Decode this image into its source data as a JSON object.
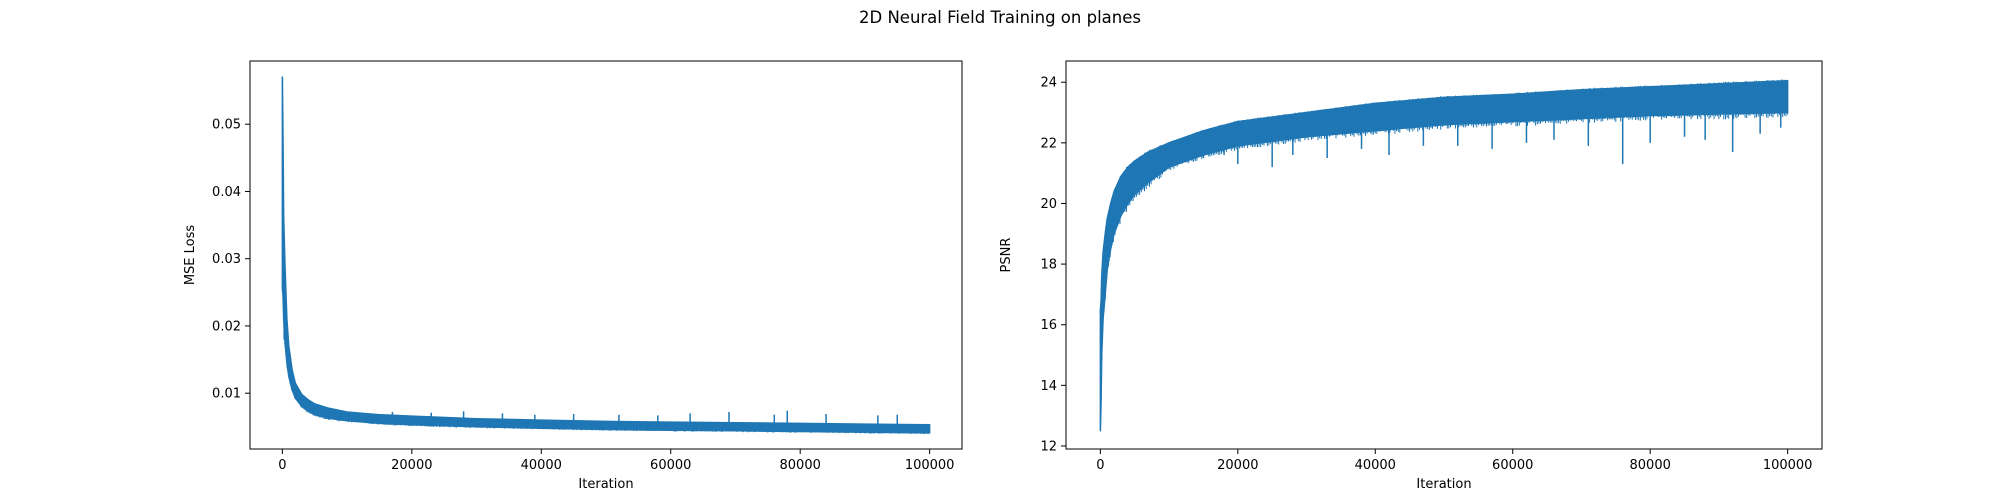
{
  "figure": {
    "title": "2D Neural Field Training on planes"
  },
  "chart_data": [
    {
      "type": "line",
      "xlabel": "Iteration",
      "ylabel": "MSE Loss",
      "xlim": [
        -5000,
        105000
      ],
      "ylim": [
        0.0017,
        0.0594
      ],
      "xticks": [
        0,
        20000,
        40000,
        60000,
        80000,
        100000
      ],
      "yticks": [
        0.01,
        0.02,
        0.03,
        0.04,
        0.05
      ],
      "ytick_format": "2",
      "color": "#1f77b4",
      "grid": false,
      "series": [
        {
          "x": [
            0,
            100,
            200,
            400,
            700,
            1000,
            1500,
            2000,
            3000,
            4000,
            5000,
            7000,
            10000,
            15000,
            20000,
            30000,
            40000,
            50000,
            60000,
            70000,
            80000,
            90000,
            100000
          ],
          "upper": [
            0.057,
            0.048,
            0.036,
            0.029,
            0.021,
            0.017,
            0.0135,
            0.0115,
            0.0098,
            0.009,
            0.0084,
            0.0078,
            0.0072,
            0.0068,
            0.0066,
            0.0062,
            0.006,
            0.0058,
            0.0057,
            0.0056,
            0.0055,
            0.0054,
            0.0053
          ],
          "lower": [
            0.0255,
            0.0245,
            0.021,
            0.0175,
            0.0145,
            0.0125,
            0.0105,
            0.0093,
            0.008,
            0.0073,
            0.0068,
            0.0063,
            0.0059,
            0.0055,
            0.0053,
            0.005,
            0.0048,
            0.0046,
            0.0045,
            0.0044,
            0.0043,
            0.0042,
            0.0041
          ]
        }
      ],
      "spikes": [
        {
          "x": 17000,
          "y": 0.0072
        },
        {
          "x": 23000,
          "y": 0.0071
        },
        {
          "x": 28000,
          "y": 0.0073
        },
        {
          "x": 34000,
          "y": 0.007
        },
        {
          "x": 39000,
          "y": 0.0068
        },
        {
          "x": 45000,
          "y": 0.0069
        },
        {
          "x": 52000,
          "y": 0.0068
        },
        {
          "x": 58000,
          "y": 0.0067
        },
        {
          "x": 63000,
          "y": 0.007
        },
        {
          "x": 69000,
          "y": 0.0072
        },
        {
          "x": 76000,
          "y": 0.0068
        },
        {
          "x": 78000,
          "y": 0.0074
        },
        {
          "x": 84000,
          "y": 0.0069
        },
        {
          "x": 92000,
          "y": 0.0067
        },
        {
          "x": 95000,
          "y": 0.0068
        }
      ]
    },
    {
      "type": "line",
      "xlabel": "Iteration",
      "ylabel": "PSNR",
      "xlim": [
        -5000,
        105000
      ],
      "ylim": [
        11.9,
        24.7
      ],
      "xticks": [
        0,
        20000,
        40000,
        60000,
        80000,
        100000
      ],
      "yticks": [
        12,
        14,
        16,
        18,
        20,
        22,
        24
      ],
      "ytick_format": "0",
      "color": "#1f77b4",
      "grid": false,
      "series": [
        {
          "x": [
            0,
            100,
            200,
            400,
            700,
            1000,
            1500,
            2000,
            3000,
            4000,
            5000,
            7000,
            10000,
            15000,
            20000,
            30000,
            40000,
            50000,
            60000,
            70000,
            80000,
            90000,
            100000
          ],
          "upper": [
            16.5,
            16.8,
            17.6,
            18.4,
            19.0,
            19.5,
            20.0,
            20.4,
            20.9,
            21.2,
            21.4,
            21.7,
            22.0,
            22.4,
            22.7,
            23.0,
            23.3,
            23.5,
            23.6,
            23.75,
            23.85,
            23.95,
            24.05
          ],
          "lower": [
            12.5,
            13.5,
            15.0,
            16.2,
            17.0,
            17.8,
            18.5,
            19.0,
            19.6,
            20.0,
            20.3,
            20.7,
            21.2,
            21.6,
            21.9,
            22.2,
            22.4,
            22.6,
            22.7,
            22.8,
            22.9,
            22.95,
            23.0
          ]
        }
      ],
      "spikes": [
        {
          "x": 15000,
          "y": 21.5
        },
        {
          "x": 18000,
          "y": 21.6
        },
        {
          "x": 20000,
          "y": 21.3
        },
        {
          "x": 25000,
          "y": 21.2
        },
        {
          "x": 28000,
          "y": 21.6
        },
        {
          "x": 33000,
          "y": 21.5
        },
        {
          "x": 38000,
          "y": 21.8
        },
        {
          "x": 42000,
          "y": 21.6
        },
        {
          "x": 47000,
          "y": 21.9
        },
        {
          "x": 52000,
          "y": 21.9
        },
        {
          "x": 57000,
          "y": 21.8
        },
        {
          "x": 62000,
          "y": 22.0
        },
        {
          "x": 66000,
          "y": 22.1
        },
        {
          "x": 71000,
          "y": 21.9
        },
        {
          "x": 76000,
          "y": 21.3
        },
        {
          "x": 80000,
          "y": 22.0
        },
        {
          "x": 85000,
          "y": 22.2
        },
        {
          "x": 88000,
          "y": 22.1
        },
        {
          "x": 92000,
          "y": 21.7
        },
        {
          "x": 96000,
          "y": 22.3
        },
        {
          "x": 99000,
          "y": 22.5
        }
      ]
    }
  ]
}
